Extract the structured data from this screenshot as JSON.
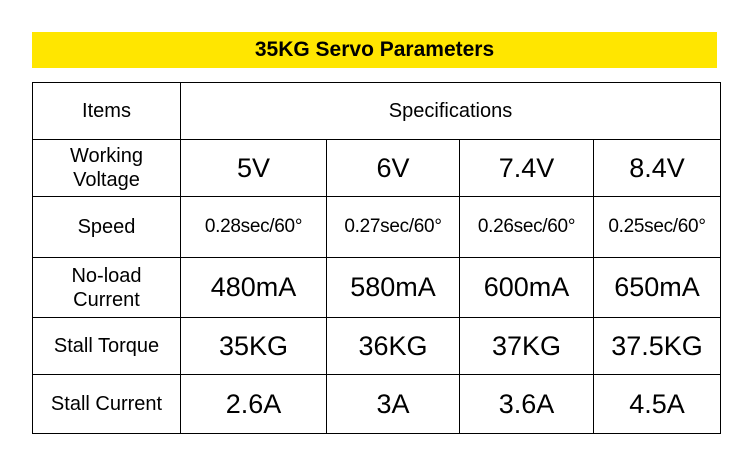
{
  "title": "35KG Servo Parameters",
  "header": {
    "items": "Items",
    "specs": "Specifications"
  },
  "rows": [
    {
      "label": "Working\nVoltage",
      "values": [
        "5V",
        "6V",
        "7.4V",
        "8.4V"
      ]
    },
    {
      "label": "Speed",
      "values": [
        "0.28sec/60°",
        "0.27sec/60°",
        "0.26sec/60°",
        "0.25sec/60°"
      ]
    },
    {
      "label": "No-load\nCurrent",
      "values": [
        "480mA",
        "580mA",
        "600mA",
        "650mA"
      ]
    },
    {
      "label": "Stall Torque",
      "values": [
        "35KG",
        "36KG",
        "37KG",
        "37.5KG"
      ]
    },
    {
      "label": "Stall Current",
      "values": [
        "2.6A",
        "3A",
        "3.6A",
        "4.5A"
      ]
    }
  ],
  "colors": {
    "title_bg": "#ffe600"
  }
}
